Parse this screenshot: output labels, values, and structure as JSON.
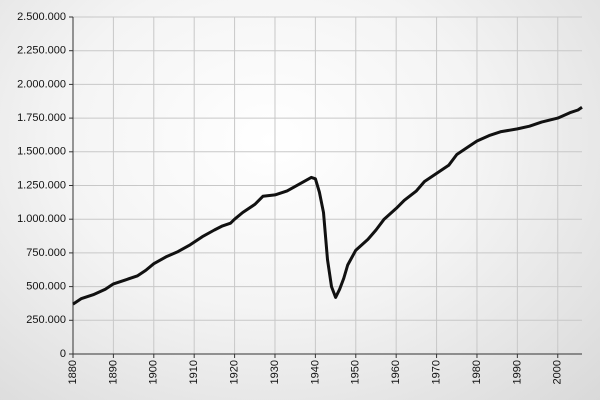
{
  "chart_data": {
    "type": "line",
    "color": "#111111",
    "grid": true,
    "x": [
      1880,
      1882,
      1885,
      1888,
      1890,
      1893,
      1896,
      1898,
      1900,
      1903,
      1906,
      1909,
      1912,
      1915,
      1917,
      1919,
      1920,
      1922,
      1925,
      1927,
      1930,
      1933,
      1936,
      1939,
      1940,
      1941,
      1942,
      1943,
      1944,
      1945,
      1946,
      1947,
      1948,
      1950,
      1953,
      1955,
      1957,
      1960,
      1962,
      1965,
      1967,
      1970,
      1973,
      1975,
      1978,
      1980,
      1983,
      1986,
      1990,
      1993,
      1996,
      2000,
      2003,
      2005,
      2006
    ],
    "values": [
      370000,
      410000,
      440000,
      480000,
      520000,
      550000,
      580000,
      620000,
      670000,
      720000,
      760000,
      810000,
      870000,
      920000,
      950000,
      970000,
      1000000,
      1050000,
      1110000,
      1170000,
      1180000,
      1210000,
      1260000,
      1310000,
      1300000,
      1200000,
      1050000,
      700000,
      500000,
      420000,
      480000,
      560000,
      660000,
      770000,
      850000,
      920000,
      1000000,
      1080000,
      1140000,
      1210000,
      1280000,
      1340000,
      1400000,
      1480000,
      1540000,
      1580000,
      1620000,
      1650000,
      1670000,
      1690000,
      1720000,
      1750000,
      1790000,
      1810000,
      1830000
    ],
    "xlim": [
      1880,
      2006
    ],
    "xticks": [
      1880,
      1890,
      1900,
      1910,
      1920,
      1930,
      1940,
      1950,
      1960,
      1970,
      1980,
      1990,
      2000
    ],
    "ylim": [
      0,
      2500000
    ],
    "yticks": [
      0,
      {
        "value": 250000,
        "label": "250.000"
      },
      {
        "value": 500000,
        "label": "500.000"
      },
      {
        "value": 750000,
        "label": "750.000"
      },
      {
        "value": 1000000,
        "label": "1.000.000"
      },
      {
        "value": 1250000,
        "label": "1.250.000"
      },
      {
        "value": 1500000,
        "label": "1.500.000"
      },
      {
        "value": 1750000,
        "label": "1.750.000"
      },
      {
        "value": 2000000,
        "label": "2.000.000"
      },
      {
        "value": 2250000,
        "label": "2.250.000"
      },
      {
        "value": 2500000,
        "label": "2.500.000"
      }
    ]
  }
}
